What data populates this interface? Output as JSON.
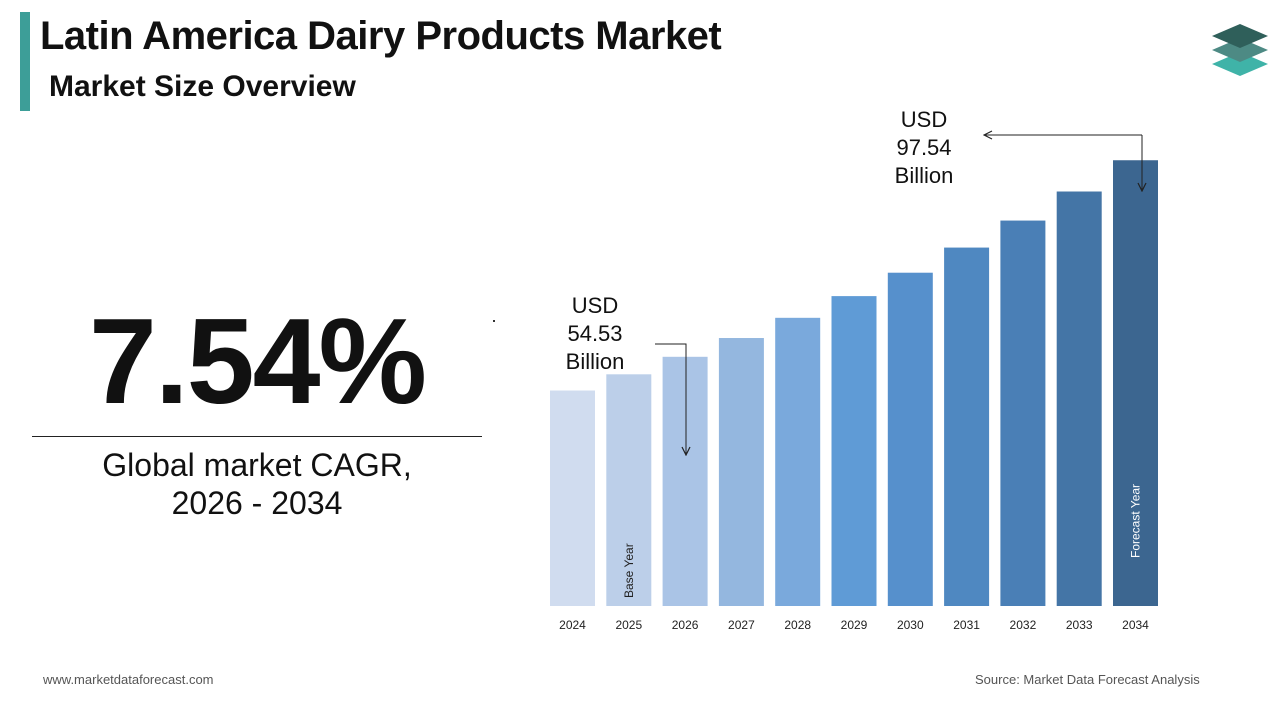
{
  "header": {
    "title": "Latin America Dairy Products Market",
    "subtitle": "Market Size Overview"
  },
  "logo": {
    "icon": "stacked-layers-icon",
    "colors": [
      "#2f5f5a",
      "#4d8a84",
      "#3fb3a8"
    ]
  },
  "cagr": {
    "value": "7.54%",
    "label_line1": "Global market CAGR,",
    "label_line2": "2026 - 2034"
  },
  "callouts": {
    "start": {
      "line1": "USD",
      "line2": "54.53",
      "line3": "Billion"
    },
    "end": {
      "line1": "USD",
      "line2": "97.54",
      "line3": "Billion"
    }
  },
  "chart_data": {
    "type": "bar",
    "categories": [
      "2024",
      "2025",
      "2026",
      "2027",
      "2028",
      "2029",
      "2030",
      "2031",
      "2032",
      "2033",
      "2034"
    ],
    "values": [
      47.15,
      50.7,
      54.53,
      58.64,
      63.06,
      67.81,
      72.93,
      78.43,
      84.34,
      90.7,
      97.54
    ],
    "colors": [
      "#d0dcef",
      "#bccfe9",
      "#aac4e6",
      "#94b7df",
      "#7aa9dc",
      "#5f9bd6",
      "#5690cc",
      "#4f88c1",
      "#4a7fb6",
      "#4475a6",
      "#3c6690"
    ],
    "bar_labels": {
      "2025": "Base Year",
      "2034": "Forecast Year"
    },
    "ylim": [
      0,
      100
    ],
    "grid": false,
    "legend": "none"
  },
  "footer": {
    "website": "www.marketdataforecast.com",
    "source": "Source: Market Data Forecast Analysis"
  }
}
